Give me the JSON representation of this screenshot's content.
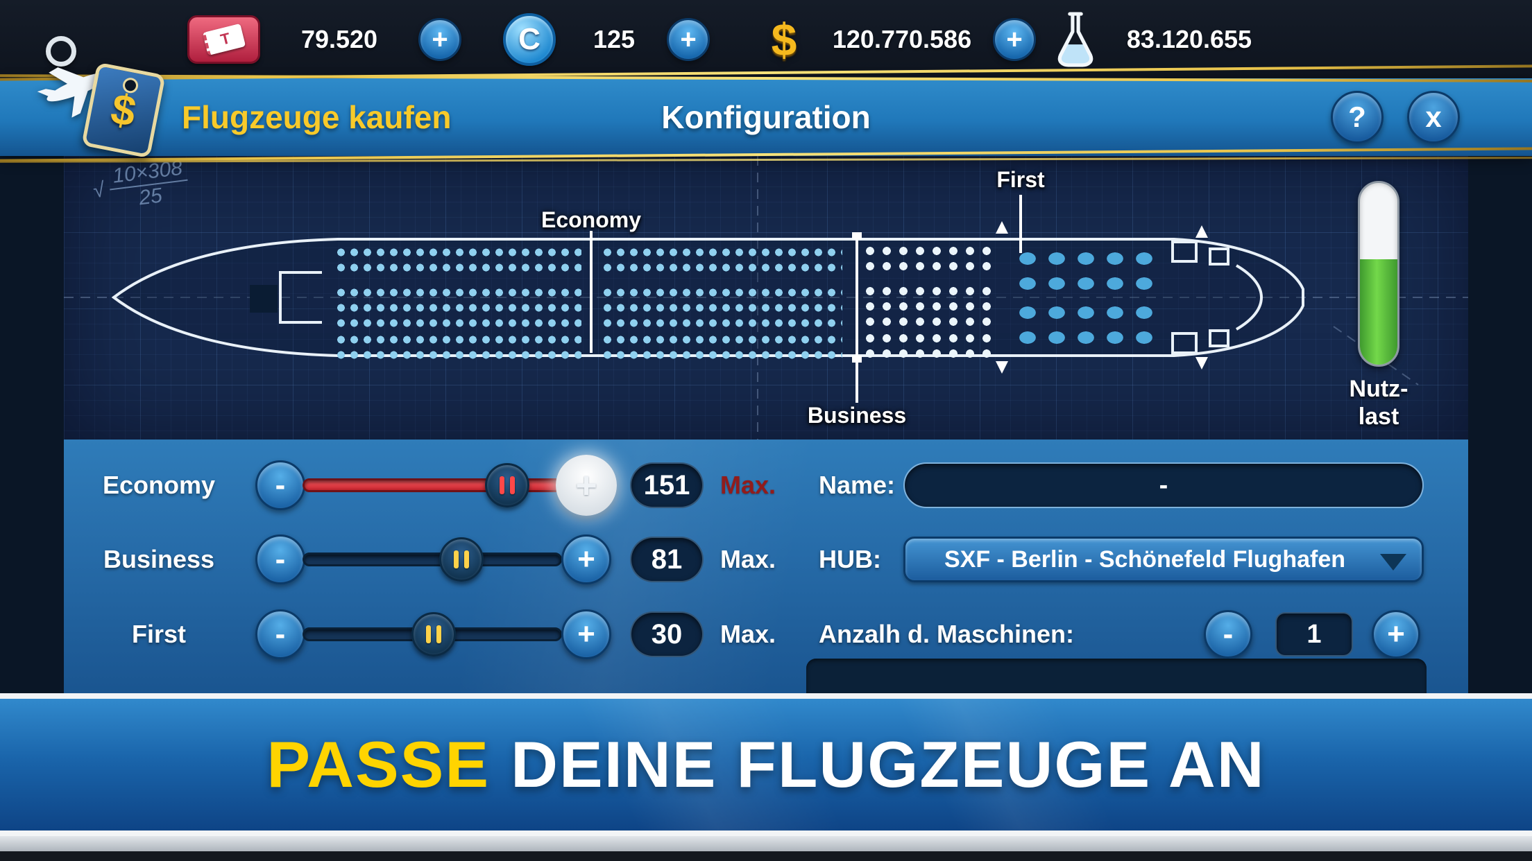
{
  "colors": {
    "accent_gold": "#f8ca2a",
    "banner_highlight": "#ffd400",
    "economy_red": "#e43a44",
    "gauge_green": "#5abf3c"
  },
  "topbar": {
    "add_label": "+",
    "resources": [
      {
        "name": "Tickets",
        "glyph": "T",
        "value": "79.520"
      },
      {
        "name": "Coins",
        "glyph": "C",
        "value": "125"
      },
      {
        "name": "Cash",
        "glyph": "$",
        "value": "120.770.586"
      },
      {
        "name": "Research",
        "glyph": "",
        "value": "83.120.655"
      }
    ]
  },
  "header": {
    "left_title": "Flugzeuge kaufen",
    "center_title": "Konfiguration",
    "help_label": "?",
    "close_label": "x",
    "logo_tag_glyph": "$"
  },
  "blueprint": {
    "scribble_radical": "√",
    "scribble_top": "10×308",
    "scribble_bottom": "25",
    "label_economy": "Economy",
    "label_business": "Business",
    "label_first": "First",
    "gauge_label": "Nutz-\nlast",
    "gauge_fill_percent": 58
  },
  "sliders": {
    "minus_label": "-",
    "plus_label": "+",
    "rows": [
      {
        "label": "Economy",
        "value": "151",
        "max_label": "Max.",
        "at_max": true
      },
      {
        "label": "Business",
        "value": "81",
        "max_label": "Max.",
        "at_max": false
      },
      {
        "label": "First",
        "value": "30",
        "max_label": "Max.",
        "at_max": false
      }
    ]
  },
  "form": {
    "name_label": "Name:",
    "name_value": "-",
    "hub_label": "HUB:",
    "hub_value": "SXF - Berlin - Schönefeld Flughafen",
    "count_label": "Anzalh d. Maschinen:",
    "count_minus": "-",
    "count_plus": "+",
    "count_value": "1"
  },
  "banner": {
    "highlight": "PASSE",
    "rest": "DEINE FLUGZEUGE AN"
  }
}
